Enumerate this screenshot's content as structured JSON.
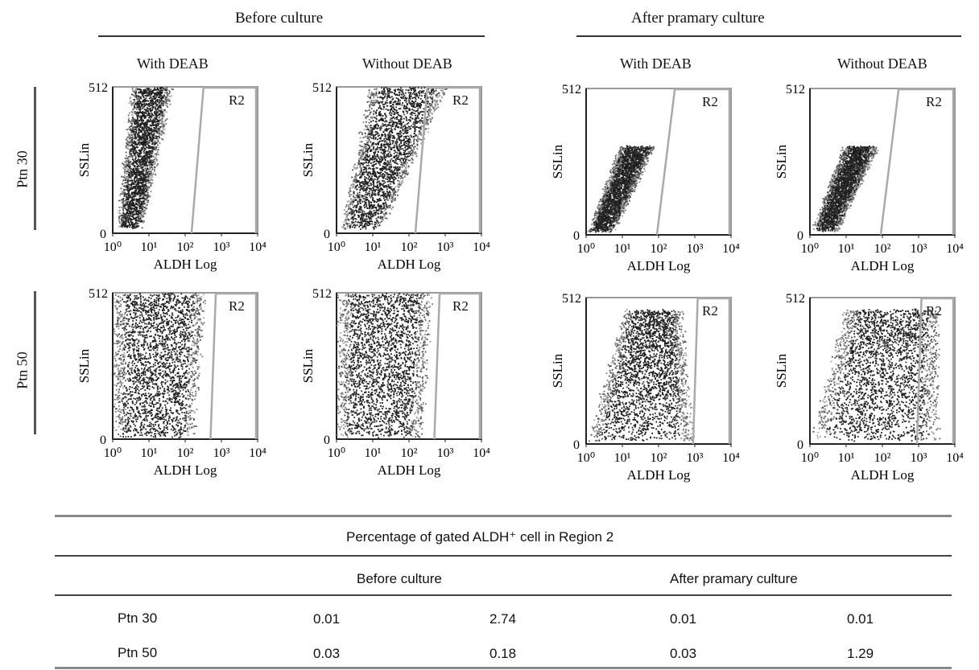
{
  "group_headers": [
    "Before culture",
    "After pramary culture"
  ],
  "condition_labels": [
    "With DEAB",
    "Without DEAB",
    "With DEAB",
    "Without DEAB"
  ],
  "row_labels": [
    "Ptn 30",
    "Ptn 50"
  ],
  "chart_data": [
    {
      "type": "scatter",
      "panel": "Ptn 30 / Before culture / With DEAB",
      "xlabel": "ALDH Log",
      "ylabel": "SSLin",
      "x_scale": "log",
      "xlim": [
        1,
        10000
      ],
      "ylim": [
        0,
        512
      ],
      "x_ticks": [
        "10⁰",
        "10¹",
        "10²",
        "10³",
        "10⁴"
      ],
      "y_ticks": [
        "0",
        "512"
      ],
      "gate": "R2",
      "gate_boundary_x": [
        150,
        320
      ],
      "cloud": {
        "x_log_start": [
          0.15,
          0.55
        ],
        "x_log_end": [
          0.75,
          1.6
        ],
        "y_range": [
          20,
          512
        ]
      }
    },
    {
      "type": "scatter",
      "panel": "Ptn 30 / Before culture / Without DEAB",
      "xlabel": "ALDH Log",
      "ylabel": "SSLin",
      "x_scale": "log",
      "xlim": [
        1,
        10000
      ],
      "ylim": [
        0,
        512
      ],
      "x_ticks": [
        "10⁰",
        "10¹",
        "10²",
        "10³",
        "10⁴"
      ],
      "y_ticks": [
        "0",
        "512"
      ],
      "gate": "R2",
      "gate_boundary_x": [
        150,
        320
      ],
      "cloud": {
        "x_log_start": [
          0.15,
          0.95
        ],
        "x_log_end": [
          1.2,
          3.0
        ],
        "y_range": [
          20,
          512
        ]
      }
    },
    {
      "type": "scatter",
      "panel": "Ptn 30 / After pramary culture / With DEAB",
      "xlabel": "ALDH Log",
      "ylabel": "SSLin",
      "x_scale": "log",
      "xlim": [
        1,
        10000
      ],
      "ylim": [
        0,
        512
      ],
      "x_ticks": [
        "10⁰",
        "10¹",
        "10²",
        "10³",
        "10⁴"
      ],
      "y_ticks": [
        "0",
        "512"
      ],
      "gate": "R2",
      "gate_boundary_x": [
        90,
        280
      ],
      "cloud": {
        "x_log_start": [
          0.1,
          0.95
        ],
        "x_log_end": [
          0.7,
          1.85
        ],
        "y_range": [
          15,
          310
        ]
      }
    },
    {
      "type": "scatter",
      "panel": "Ptn 30 / After pramary culture / Without DEAB",
      "xlabel": "ALDH Log",
      "ylabel": "SSLin",
      "x_scale": "log",
      "xlim": [
        1,
        10000
      ],
      "ylim": [
        0,
        512
      ],
      "x_ticks": [
        "10⁰",
        "10¹",
        "10²",
        "10³",
        "10⁴"
      ],
      "y_ticks": [
        "0",
        "512"
      ],
      "gate": "R2",
      "gate_boundary_x": [
        90,
        280
      ],
      "cloud": {
        "x_log_start": [
          0.1,
          0.95
        ],
        "x_log_end": [
          0.7,
          1.85
        ],
        "y_range": [
          15,
          310
        ]
      }
    },
    {
      "type": "scatter",
      "panel": "Ptn 50 / Before culture / With DEAB",
      "xlabel": "ALDH Log",
      "ylabel": "SSLin",
      "x_scale": "log",
      "xlim": [
        1,
        10000
      ],
      "ylim": [
        0,
        512
      ],
      "x_ticks": [
        "10⁰",
        "10¹",
        "10²",
        "10³",
        "10⁴"
      ],
      "y_ticks": [
        "0",
        "512"
      ],
      "gate": "R2",
      "gate_boundary_x": [
        500,
        700
      ],
      "cloud": {
        "x_log_start": [
          0.05,
          0.05
        ],
        "x_log_end": [
          2.2,
          2.5
        ],
        "y_range": [
          10,
          512
        ]
      }
    },
    {
      "type": "scatter",
      "panel": "Ptn 50 / Before culture / Without DEAB",
      "xlabel": "ALDH Log",
      "ylabel": "SSLin",
      "x_scale": "log",
      "xlim": [
        1,
        10000
      ],
      "ylim": [
        0,
        512
      ],
      "x_ticks": [
        "10⁰",
        "10¹",
        "10²",
        "10³",
        "10⁴"
      ],
      "y_ticks": [
        "0",
        "512"
      ],
      "gate": "R2",
      "gate_boundary_x": [
        500,
        700
      ],
      "cloud": {
        "x_log_start": [
          0.05,
          0.05
        ],
        "x_log_end": [
          2.3,
          2.6
        ],
        "y_range": [
          10,
          512
        ]
      }
    },
    {
      "type": "scatter",
      "panel": "Ptn 50 / After pramary culture / With DEAB",
      "xlabel": "ALDH Log",
      "ylabel": "SSLin",
      "x_scale": "log",
      "xlim": [
        1,
        10000
      ],
      "ylim": [
        0,
        512
      ],
      "x_ticks": [
        "10⁰",
        "10¹",
        "10²",
        "10³",
        "10⁴"
      ],
      "y_ticks": [
        "0",
        "512"
      ],
      "gate": "R2",
      "gate_boundary_x": [
        900,
        1200
      ],
      "cloud": {
        "x_log_start": [
          0.05,
          1.1
        ],
        "x_log_end": [
          2.9,
          2.6
        ],
        "y_range": [
          15,
          470
        ]
      }
    },
    {
      "type": "scatter",
      "panel": "Ptn 50 / After pramary culture / Without DEAB",
      "xlabel": "ALDH Log",
      "ylabel": "SSLin",
      "x_scale": "log",
      "xlim": [
        1,
        10000
      ],
      "ylim": [
        0,
        512
      ],
      "x_ticks": [
        "10⁰",
        "10¹",
        "10²",
        "10³",
        "10⁴"
      ],
      "y_ticks": [
        "0",
        "512"
      ],
      "gate": "R2",
      "gate_boundary_x": [
        900,
        1200
      ],
      "cloud": {
        "x_log_start": [
          0.05,
          1.0
        ],
        "x_log_end": [
          3.5,
          3.5
        ],
        "y_range": [
          15,
          470
        ]
      }
    },
    {
      "type": "table",
      "title": "Percentage of gated ALDH⁺ cell in Region 2",
      "columns": [
        "Before culture",
        "After pramary culture"
      ],
      "rows": [
        {
          "label": "Ptn 30",
          "values": [
            "0.01",
            "2.74",
            "0.01",
            "0.01"
          ]
        },
        {
          "label": "Ptn 50",
          "values": [
            "0.03",
            "0.18",
            "0.03",
            "1.29"
          ]
        }
      ]
    }
  ]
}
